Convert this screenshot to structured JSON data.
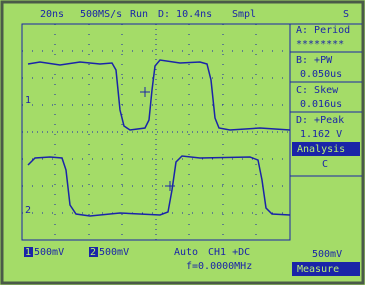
{
  "header": {
    "timebase": "20ns",
    "sample_rate": "500MS/s",
    "state": "Run",
    "delay": "D: 10.4ns",
    "mode": "Smpl",
    "trigger": "S"
  },
  "measurements": [
    {
      "label": "A: Period",
      "value": "********"
    },
    {
      "label": "B: +PW",
      "value": "0.050us"
    },
    {
      "label": "C: Skew",
      "value": "0.016us"
    },
    {
      "label": "D: +Peak",
      "value": "1.162 V"
    }
  ],
  "menu": {
    "analysis": "Analysis",
    "option": "C",
    "scale": "500mV",
    "measure": "Measure"
  },
  "channel_markers": [
    "1",
    "2"
  ],
  "footer": {
    "ch1_label": "1",
    "ch1": "500mV",
    "ch2_label": "2",
    "ch2": "500mV",
    "trigger_mode": "Auto",
    "trigger_source": "CH1 +DC",
    "frequency": "f=0.0000MHz"
  }
}
